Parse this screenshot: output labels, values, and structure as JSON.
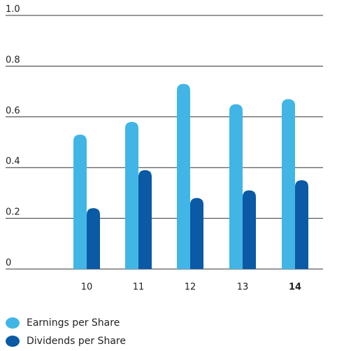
{
  "chart_data": {
    "type": "bar",
    "categories": [
      "10",
      "11",
      "12",
      "13",
      "14"
    ],
    "series": [
      {
        "name": "Earnings per Share",
        "color": "#41b6e6",
        "values": [
          0.53,
          0.58,
          0.73,
          0.65,
          0.67
        ]
      },
      {
        "name": "Dividends per Share",
        "color": "#0a5aa5",
        "values": [
          0.24,
          0.39,
          0.28,
          0.31,
          0.35
        ]
      }
    ],
    "ylim": [
      0,
      1
    ],
    "yticks": [
      0,
      0.2,
      0.4,
      0.6,
      0.8,
      {
        "value": 1,
        "label": "1.0"
      }
    ],
    "grid": true
  }
}
